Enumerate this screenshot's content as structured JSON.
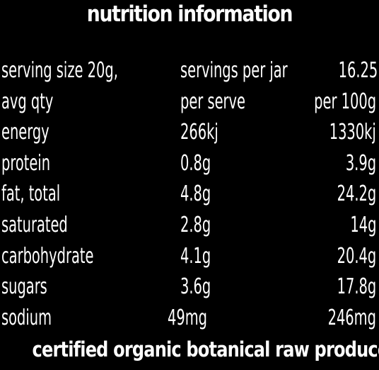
{
  "panel": {
    "title": "nutrition information",
    "footer": "certified organic botanical raw produce"
  },
  "rows": [
    {
      "label": "serving size 20g,",
      "per_serve": "servings per jar",
      "per_100g": "16.25"
    },
    {
      "label": "avg qty",
      "per_serve": "per serve",
      "per_100g": "per 100g"
    },
    {
      "label": "energy",
      "per_serve": "266kj",
      "per_100g": "1330kj"
    },
    {
      "label": "protein",
      "per_serve": "0.8g",
      "per_100g": "3.9g"
    },
    {
      "label": "fat, total",
      "per_serve": "4.8g",
      "per_100g": "24.2g"
    },
    {
      "label": "saturated",
      "per_serve": "2.8g",
      "per_100g": "14g"
    },
    {
      "label": "carbohydrate",
      "per_serve": "4.1g",
      "per_100g": "20.4g"
    },
    {
      "label": "sugars",
      "per_serve": "3.6g",
      "per_100g": "17.8g"
    },
    {
      "label": "sodium",
      "per_serve": "49mg",
      "per_100g": "246mg"
    }
  ]
}
